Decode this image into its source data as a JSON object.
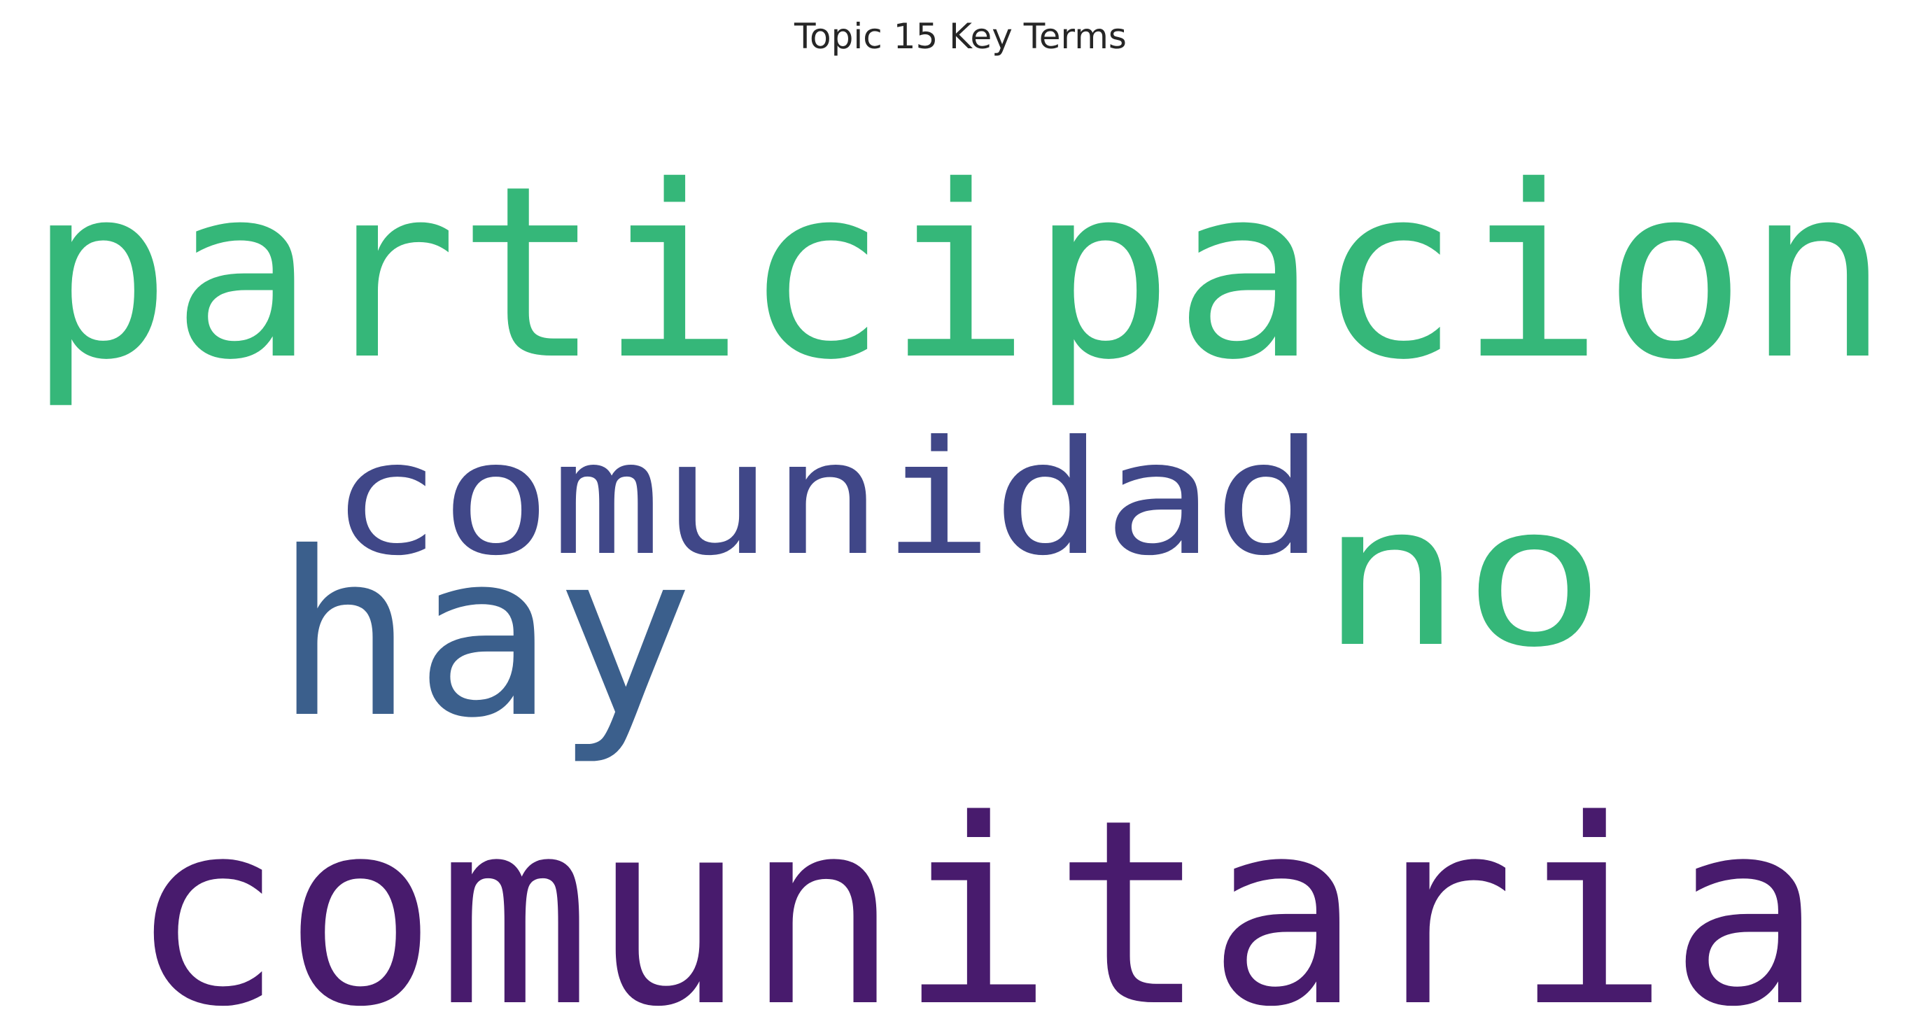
{
  "chart_data": {
    "type": "wordcloud",
    "title": "Topic 15 Key Terms",
    "words": [
      {
        "text": "participacion",
        "weight": 1.0,
        "color": "#35b779"
      },
      {
        "text": "comunitaria",
        "weight": 0.97,
        "color": "#481b6d"
      },
      {
        "text": "hay",
        "weight": 0.72,
        "color": "#3b5f8c"
      },
      {
        "text": "no",
        "weight": 0.62,
        "color": "#35b779"
      },
      {
        "text": "comunidad",
        "weight": 0.5,
        "color": "#404788"
      }
    ]
  }
}
